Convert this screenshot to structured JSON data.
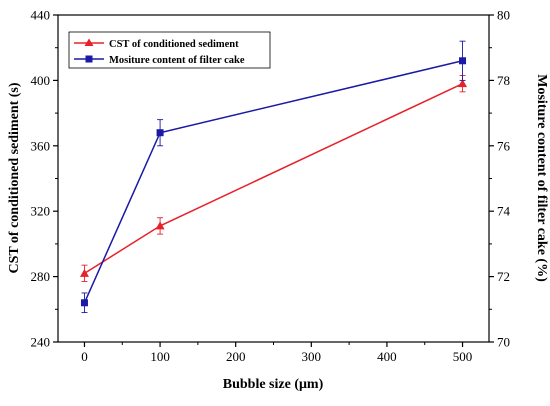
{
  "chart_data": {
    "type": "line",
    "title": "",
    "xlabel": "Bubble size (μm)",
    "ylabel_left": "CST of conditioned sediment (s)",
    "ylabel_right": "Mositure content of filter cake (%)",
    "xlim": [
      -35,
      535
    ],
    "x_ticks": [
      0,
      100,
      200,
      300,
      400,
      500
    ],
    "x_tick_labels": [
      "0",
      "100",
      "200",
      "300",
      "400",
      "500"
    ],
    "ylim_left": [
      240,
      440
    ],
    "y_left_ticks": [
      240,
      280,
      320,
      360,
      400,
      440
    ],
    "y_left_tick_labels": [
      "240",
      "280",
      "320",
      "360",
      "400",
      "440"
    ],
    "ylim_right": [
      70,
      80
    ],
    "y_right_ticks": [
      70,
      72,
      74,
      76,
      78,
      80
    ],
    "y_right_tick_labels": [
      "70",
      "72",
      "74",
      "76",
      "78",
      "80"
    ],
    "grid": false,
    "legend_position": "top-left",
    "series": [
      {
        "name": "CST of conditioned sediment",
        "axis": "left",
        "color": "#e8202a",
        "marker": "triangle",
        "x": [
          0,
          100,
          500
        ],
        "y": [
          282,
          311,
          398
        ],
        "error": [
          5,
          5,
          5
        ]
      },
      {
        "name": "Mositure content of filter cake",
        "axis": "right",
        "color": "#1a1aa6",
        "marker": "square",
        "x": [
          0,
          100,
          500
        ],
        "y": [
          71.2,
          76.4,
          78.6
        ],
        "error": [
          0.3,
          0.4,
          0.6
        ]
      }
    ]
  }
}
